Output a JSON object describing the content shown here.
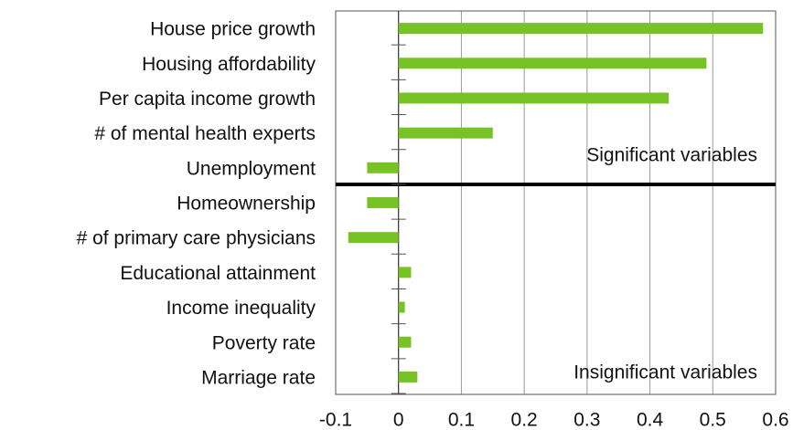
{
  "chart_data": {
    "type": "bar",
    "orientation": "horizontal",
    "categories": [
      "House price growth",
      "Housing affordability",
      "Per capita income growth",
      "# of mental health experts",
      "Unemployment",
      "Homeownership",
      "# of primary care physicians",
      "Educational attainment",
      "Income inequality",
      "Poverty rate",
      "Marriage rate"
    ],
    "values": [
      0.58,
      0.49,
      0.43,
      0.15,
      -0.05,
      -0.05,
      -0.08,
      0.02,
      0.01,
      0.02,
      0.03
    ],
    "color": "#77c225",
    "xlim": [
      -0.1,
      0.6
    ],
    "xticks": [
      -0.1,
      0,
      0.1,
      0.2,
      0.3,
      0.4,
      0.5,
      0.6
    ],
    "grid": true,
    "annotations": [
      "Significant variables",
      "Insignificant variables"
    ]
  }
}
